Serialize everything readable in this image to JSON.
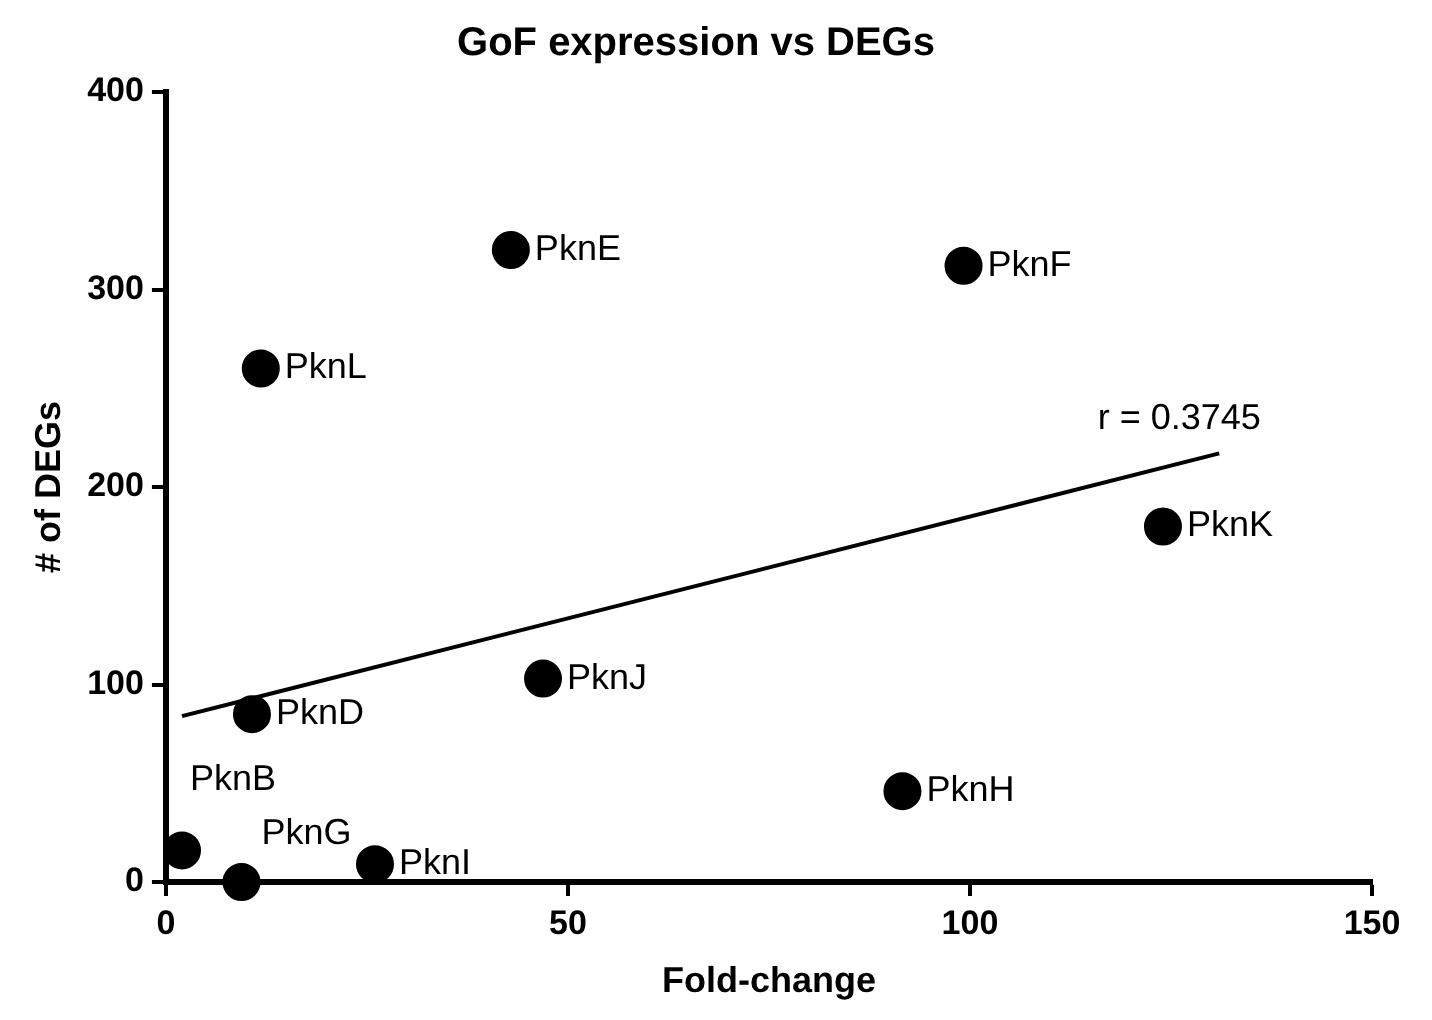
{
  "chart_data": {
    "type": "scatter",
    "title": "GoF expression vs DEGs",
    "xlabel": "Fold-change",
    "ylabel": "# of DEGs",
    "xlim": [
      0,
      150
    ],
    "xticks": [
      0,
      50,
      100,
      150
    ],
    "ylim": [
      0,
      400
    ],
    "yticks": [
      0,
      100,
      200,
      300,
      400
    ],
    "grid": false,
    "legend": false,
    "marker": "circle",
    "series": [
      {
        "color": "#000000",
        "x": [
          42.9,
          99.2,
          11.8,
          124,
          10.7,
          46.9,
          91.6,
          2,
          9.4,
          26
        ],
        "values": [
          320,
          312,
          260,
          180,
          85,
          103,
          46,
          16,
          0,
          9
        ]
      },
      {
        "type": "line",
        "marker": "none",
        "color": "#000000",
        "x": [
          2,
          131
        ],
        "values": [
          84,
          217
        ]
      }
    ],
    "annotations": [
      {
        "text": "PknE",
        "x": 42.9,
        "y": 320
      },
      {
        "text": "PknF",
        "x": 99.2,
        "y": 312
      },
      {
        "text": "PknL",
        "x": 11.8,
        "y": 260
      },
      {
        "text": "PknK",
        "x": 124,
        "y": 180
      },
      {
        "text": "PknD",
        "x": 10.7,
        "y": 85
      },
      {
        "text": "PknJ",
        "x": 46.9,
        "y": 103
      },
      {
        "text": "PknH",
        "x": 91.6,
        "y": 46
      },
      {
        "text": "PknB",
        "x": 2,
        "y": 16
      },
      {
        "text": "PknG",
        "x": 9.4,
        "y": 0
      },
      {
        "text": "PknI",
        "x": 26,
        "y": 9
      },
      {
        "text": "r = 0.3745",
        "x": 131,
        "y": 217
      }
    ]
  }
}
